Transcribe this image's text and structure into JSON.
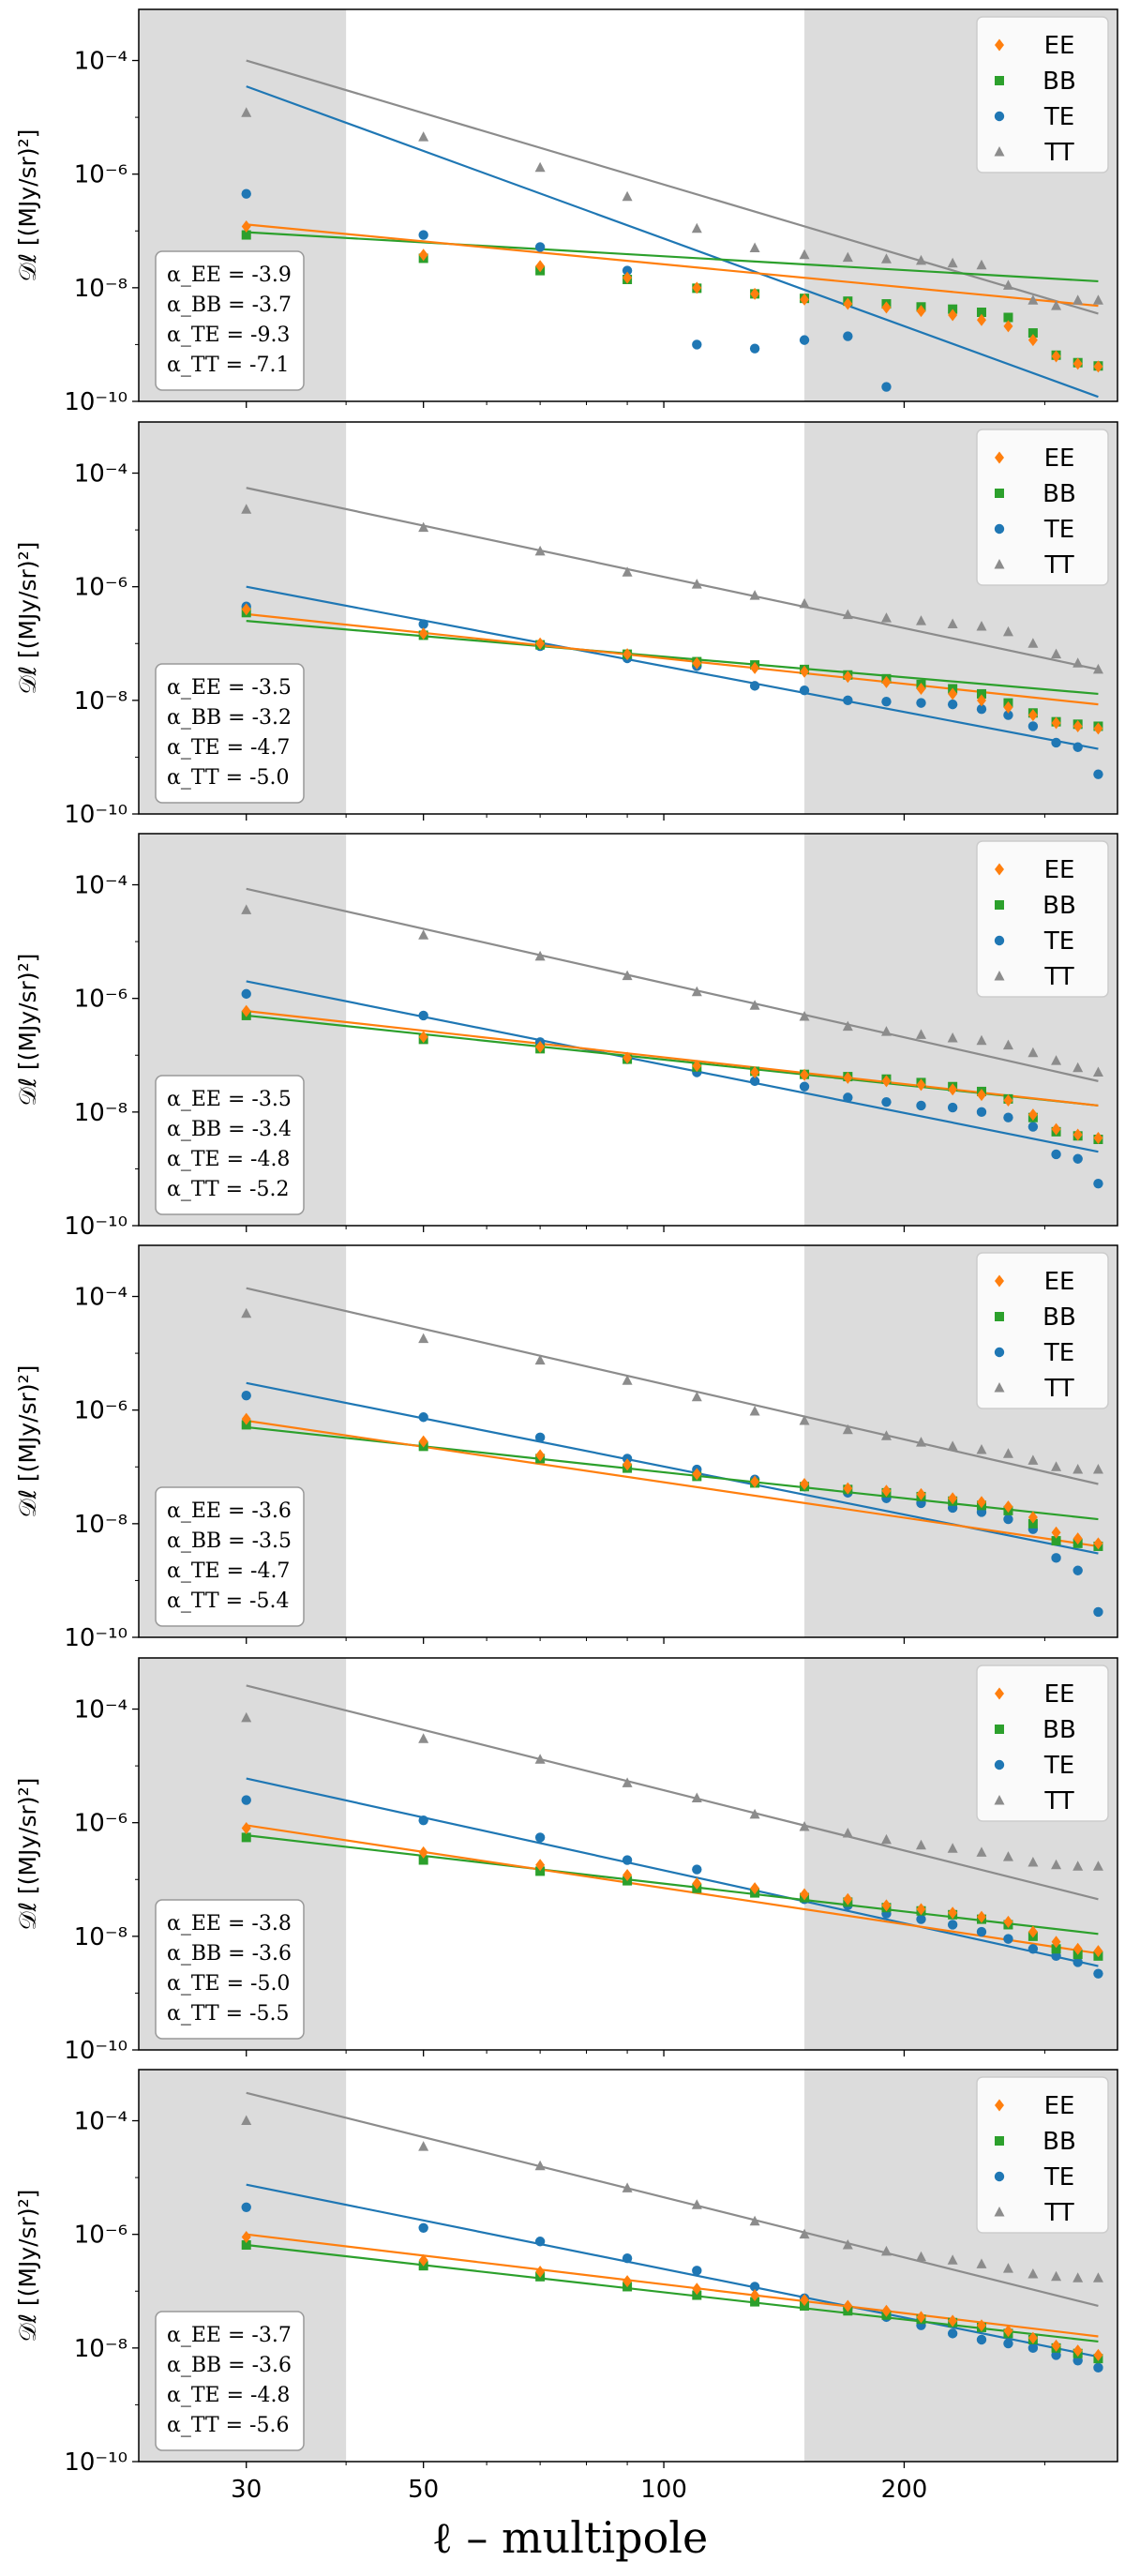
{
  "chart_data": {
    "type": "scatter",
    "layout": "6 vertically stacked panels sharing the x axis",
    "x_axis": {
      "scale": "log",
      "label": "ℓ – multipole",
      "ticks": [
        30,
        50,
        100,
        200
      ],
      "minor_ticks": [
        40,
        60,
        70,
        80,
        90,
        300
      ],
      "range": [
        22,
        370
      ]
    },
    "y_axis": {
      "scale": "log",
      "label": "𝒟ℓ [(MJy/sr)²]",
      "ticks": [
        "10⁻¹⁰",
        "10⁻⁸",
        "10⁻⁶",
        "10⁻⁴"
      ],
      "tick_exponents": [
        -10,
        -8,
        -6,
        -4
      ],
      "range_exponents": [
        -10,
        -3.1
      ]
    },
    "shaded_x_ranges": [
      [
        22,
        40
      ],
      [
        150,
        370
      ]
    ],
    "grid": false,
    "legend_placement": "top-right",
    "legend": [
      {
        "key": "EE",
        "label": "EE",
        "marker": "diamond",
        "color": "#ff7f0e"
      },
      {
        "key": "BB",
        "label": "BB",
        "marker": "square",
        "color": "#2ca02c"
      },
      {
        "key": "TE",
        "label": "TE",
        "marker": "circle",
        "color": "#1f77b4"
      },
      {
        "key": "TT",
        "label": "TT",
        "marker": "triangle",
        "color": "#8c8c8c"
      }
    ],
    "x": [
      30,
      50,
      70,
      90,
      110,
      130,
      150,
      170,
      190,
      210,
      230,
      250,
      270,
      290,
      310,
      330,
      350
    ],
    "panels": [
      {
        "alpha_labels": [
          "α_EE = -3.9",
          "α_BB = -3.7",
          "α_TE = -9.3",
          "α_TT = -7.1"
        ],
        "fits": {
          "EE": [
            1.3e-07,
            4.8e-09
          ],
          "BB": [
            9.5e-08,
            1.3e-08
          ],
          "TE": [
            3.5e-05,
            1.2e-10
          ],
          "TT": [
            0.0001,
            3.5e-09
          ]
        },
        "points": {
          "EE": [
            1.2e-07,
            3.8e-08,
            2.4e-08,
            1.5e-08,
            1e-08,
            7.8e-09,
            6.2e-09,
            5.2e-09,
            4.5e-09,
            3.9e-09,
            3.3e-09,
            2.7e-09,
            2.1e-09,
            1.2e-09,
            6.2e-10,
            4.6e-10,
            4.1e-10
          ],
          "BB": [
            8.5e-08,
            3.3e-08,
            2e-08,
            1.4e-08,
            9.8e-09,
            7.8e-09,
            6.5e-09,
            5.8e-09,
            5.2e-09,
            4.6e-09,
            4.2e-09,
            3.7e-09,
            3e-09,
            1.6e-09,
            6.5e-10,
            4.8e-10,
            4.2e-10
          ],
          "TE": [
            4.5e-07,
            8.5e-08,
            5.2e-08,
            2e-08,
            1e-09,
            8.5e-10,
            1.2e-09,
            1.4e-09,
            1.8e-10,
            null,
            null,
            null,
            null,
            null,
            null,
            null,
            null
          ],
          "TT": [
            1.2e-05,
            4.5e-06,
            1.3e-06,
            4e-07,
            1.1e-07,
            5e-08,
            3.8e-08,
            3.4e-08,
            3.2e-08,
            3e-08,
            2.7e-08,
            2.5e-08,
            1.1e-08,
            6e-09,
            4.8e-09,
            6e-09,
            6e-09
          ]
        }
      },
      {
        "alpha_labels": [
          "α_EE = -3.5",
          "α_BB = -3.2",
          "α_TE = -4.7",
          "α_TT = -5.0"
        ],
        "fits": {
          "EE": [
            3.3e-07,
            8.5e-09
          ],
          "BB": [
            2.5e-07,
            1.3e-08
          ],
          "TE": [
            1e-06,
            1.4e-09
          ],
          "TT": [
            5.5e-05,
            3.5e-08
          ]
        },
        "points": {
          "EE": [
            4e-07,
            1.5e-07,
            1e-07,
            6.5e-08,
            4.5e-08,
            3.7e-08,
            3.2e-08,
            2.6e-08,
            2.1e-08,
            1.6e-08,
            1.3e-08,
            1e-08,
            7.5e-09,
            5.5e-09,
            4e-09,
            3.5e-09,
            3.2e-09
          ],
          "BB": [
            3.5e-07,
            1.4e-07,
            9.5e-08,
            6.5e-08,
            4.8e-08,
            4.2e-08,
            3.5e-08,
            2.8e-08,
            2.4e-08,
            1.9e-08,
            1.6e-08,
            1.3e-08,
            9e-09,
            6e-09,
            4.2e-09,
            3.8e-09,
            3.5e-09
          ],
          "TE": [
            4.5e-07,
            2.2e-07,
            9e-08,
            5.5e-08,
            4e-08,
            1.8e-08,
            1.5e-08,
            1e-08,
            9.5e-09,
            9e-09,
            8.5e-09,
            7e-09,
            5.5e-09,
            3.5e-09,
            1.8e-09,
            1.5e-09,
            5e-10
          ],
          "TT": [
            2.3e-05,
            1.1e-05,
            4.2e-06,
            1.8e-06,
            1.1e-06,
            7e-07,
            5e-07,
            3.2e-07,
            2.8e-07,
            2.5e-07,
            2.2e-07,
            2e-07,
            1.6e-07,
            1e-07,
            6.5e-08,
            4.5e-08,
            3.5e-08
          ]
        }
      },
      {
        "alpha_labels": [
          "α_EE = -3.5",
          "α_BB = -3.4",
          "α_TE = -4.8",
          "α_TT = -5.2"
        ],
        "fits": {
          "EE": [
            6e-07,
            1.3e-08
          ],
          "BB": [
            5e-07,
            1.3e-08
          ],
          "TE": [
            2e-06,
            2e-09
          ],
          "TT": [
            8.5e-05,
            3.5e-08
          ]
        },
        "points": {
          "EE": [
            6e-07,
            2.1e-07,
            1.4e-07,
            9e-08,
            6.5e-08,
            5e-08,
            4.5e-08,
            4e-08,
            3.5e-08,
            3e-08,
            2.5e-08,
            2e-08,
            1.6e-08,
            9e-09,
            5e-09,
            4e-09,
            3.5e-09
          ],
          "BB": [
            5e-07,
            1.9e-07,
            1.3e-07,
            8.5e-08,
            6.2e-08,
            5.2e-08,
            4.6e-08,
            4.2e-08,
            3.8e-08,
            3.3e-08,
            2.8e-08,
            2.3e-08,
            1.7e-08,
            8e-09,
            4.5e-09,
            3.8e-09,
            3.3e-09
          ],
          "TE": [
            1.2e-06,
            5e-07,
            1.7e-07,
            8.5e-08,
            5e-08,
            3.5e-08,
            2.8e-08,
            1.8e-08,
            1.5e-08,
            1.3e-08,
            1.2e-08,
            1e-08,
            8e-09,
            5.5e-09,
            1.8e-09,
            1.5e-09,
            5.5e-10
          ],
          "TT": [
            3.6e-05,
            1.3e-05,
            5.5e-06,
            2.5e-06,
            1.3e-06,
            7.5e-07,
            4.8e-07,
            3.2e-07,
            2.6e-07,
            2.3e-07,
            2e-07,
            1.8e-07,
            1.5e-07,
            1.1e-07,
            8e-08,
            6e-08,
            5e-08
          ]
        }
      },
      {
        "alpha_labels": [
          "α_EE = -3.6",
          "α_BB = -3.5",
          "α_TE = -4.7",
          "α_TT = -5.4"
        ],
        "fits": {
          "EE": [
            6.5e-07,
            4e-09
          ],
          "BB": [
            5e-07,
            1.2e-08
          ],
          "TE": [
            3e-06,
            3e-09
          ],
          "TT": [
            0.00014,
            5e-08
          ]
        },
        "points": {
          "EE": [
            7e-07,
            2.8e-07,
            1.6e-07,
            1.1e-07,
            7.5e-08,
            5.5e-08,
            5e-08,
            4.2e-08,
            3.8e-08,
            3.3e-08,
            2.8e-08,
            2.4e-08,
            2e-08,
            1.3e-08,
            7e-09,
            5.5e-09,
            4.5e-09
          ],
          "BB": [
            5.5e-07,
            2.3e-07,
            1.4e-07,
            9.5e-08,
            6.8e-08,
            5.2e-08,
            4.5e-08,
            4e-08,
            3.5e-08,
            3e-08,
            2.5e-08,
            2.1e-08,
            1.7e-08,
            1e-08,
            5e-09,
            4.5e-09,
            4e-09
          ],
          "TE": [
            1.8e-06,
            7.5e-07,
            3.3e-07,
            1.4e-07,
            9e-08,
            6e-08,
            4.5e-08,
            3.5e-08,
            2.8e-08,
            2.3e-08,
            1.9e-08,
            1.6e-08,
            1.2e-08,
            8e-09,
            2.5e-09,
            1.5e-09,
            2.8e-10
          ],
          "TT": [
            5e-05,
            1.8e-05,
            7.5e-06,
            3.3e-06,
            1.7e-06,
            9.5e-07,
            6.5e-07,
            4.5e-07,
            3.5e-07,
            2.7e-07,
            2.3e-07,
            2e-07,
            1.7e-07,
            1.3e-07,
            1e-07,
            9e-08,
            9e-08
          ]
        }
      },
      {
        "alpha_labels": [
          "α_EE = -3.8",
          "α_BB = -3.6",
          "α_TE = -5.0",
          "α_TT = -5.5"
        ],
        "fits": {
          "EE": [
            9e-07,
            5e-09
          ],
          "BB": [
            6e-07,
            1.1e-08
          ],
          "TE": [
            6e-06,
            3e-09
          ],
          "TT": [
            0.00026,
            4.5e-08
          ]
        },
        "points": {
          "EE": [
            8e-07,
            3e-07,
            1.8e-07,
            1.2e-07,
            8.5e-08,
            7e-08,
            5.5e-08,
            4.5e-08,
            3.5e-08,
            3e-08,
            2.6e-08,
            2.2e-08,
            1.8e-08,
            1.2e-08,
            8e-09,
            6e-09,
            5.5e-09
          ],
          "BB": [
            5.5e-07,
            2.2e-07,
            1.4e-07,
            9.5e-08,
            7e-08,
            5.8e-08,
            4.8e-08,
            4e-08,
            3.2e-08,
            2.8e-08,
            2.4e-08,
            2e-08,
            1.6e-08,
            1e-08,
            6e-09,
            4.8e-09,
            4.5e-09
          ],
          "TE": [
            2.5e-06,
            1.1e-06,
            5.5e-07,
            2.2e-07,
            1.5e-07,
            6e-08,
            4.5e-08,
            3.5e-08,
            2.5e-08,
            2e-08,
            1.6e-08,
            1.2e-08,
            9e-09,
            6e-09,
            4.5e-09,
            3.5e-09,
            2.2e-09
          ],
          "TT": [
            7e-05,
            3e-05,
            1.3e-05,
            5e-06,
            2.7e-06,
            1.4e-06,
            8.5e-07,
            6.5e-07,
            5e-07,
            4e-07,
            3.5e-07,
            3e-07,
            2.5e-07,
            2e-07,
            1.8e-07,
            1.7e-07,
            1.7e-07
          ]
        }
      },
      {
        "alpha_labels": [
          "α_EE = -3.7",
          "α_BB = -3.6",
          "α_TE = -4.8",
          "α_TT = -5.6"
        ],
        "fits": {
          "EE": [
            1e-06,
            1.6e-08
          ],
          "BB": [
            6.5e-07,
            1.3e-08
          ],
          "TE": [
            7.5e-06,
            7e-09
          ],
          "TT": [
            0.00031,
            5.5e-08
          ]
        },
        "points": {
          "EE": [
            9e-07,
            3.5e-07,
            2.2e-07,
            1.5e-07,
            1.1e-07,
            8.5e-08,
            7e-08,
            5.5e-08,
            4.5e-08,
            3.5e-08,
            3e-08,
            2.5e-08,
            2e-08,
            1.5e-08,
            1.1e-08,
            9e-09,
            7.5e-09
          ],
          "BB": [
            6.5e-07,
            2.8e-07,
            1.8e-07,
            1.2e-07,
            8.5e-08,
            6.5e-08,
            5.5e-08,
            4.5e-08,
            3.8e-08,
            3.2e-08,
            2.8e-08,
            2.3e-08,
            1.8e-08,
            1.4e-08,
            1e-08,
            8e-09,
            6.5e-09
          ],
          "TE": [
            3e-06,
            1.3e-06,
            7.5e-07,
            3.8e-07,
            2.3e-07,
            1.2e-07,
            7.5e-08,
            5e-08,
            3.5e-08,
            2.5e-08,
            1.8e-08,
            1.4e-08,
            1.2e-08,
            1e-08,
            7.5e-09,
            6e-09,
            4.5e-09
          ],
          "TT": [
            0.0001,
            3.5e-05,
            1.6e-05,
            6.5e-06,
            3.3e-06,
            1.7e-06,
            1e-06,
            6.5e-07,
            5e-07,
            4e-07,
            3.5e-07,
            3e-07,
            2.5e-07,
            2e-07,
            1.8e-07,
            1.7e-07,
            1.7e-07
          ]
        }
      }
    ]
  }
}
